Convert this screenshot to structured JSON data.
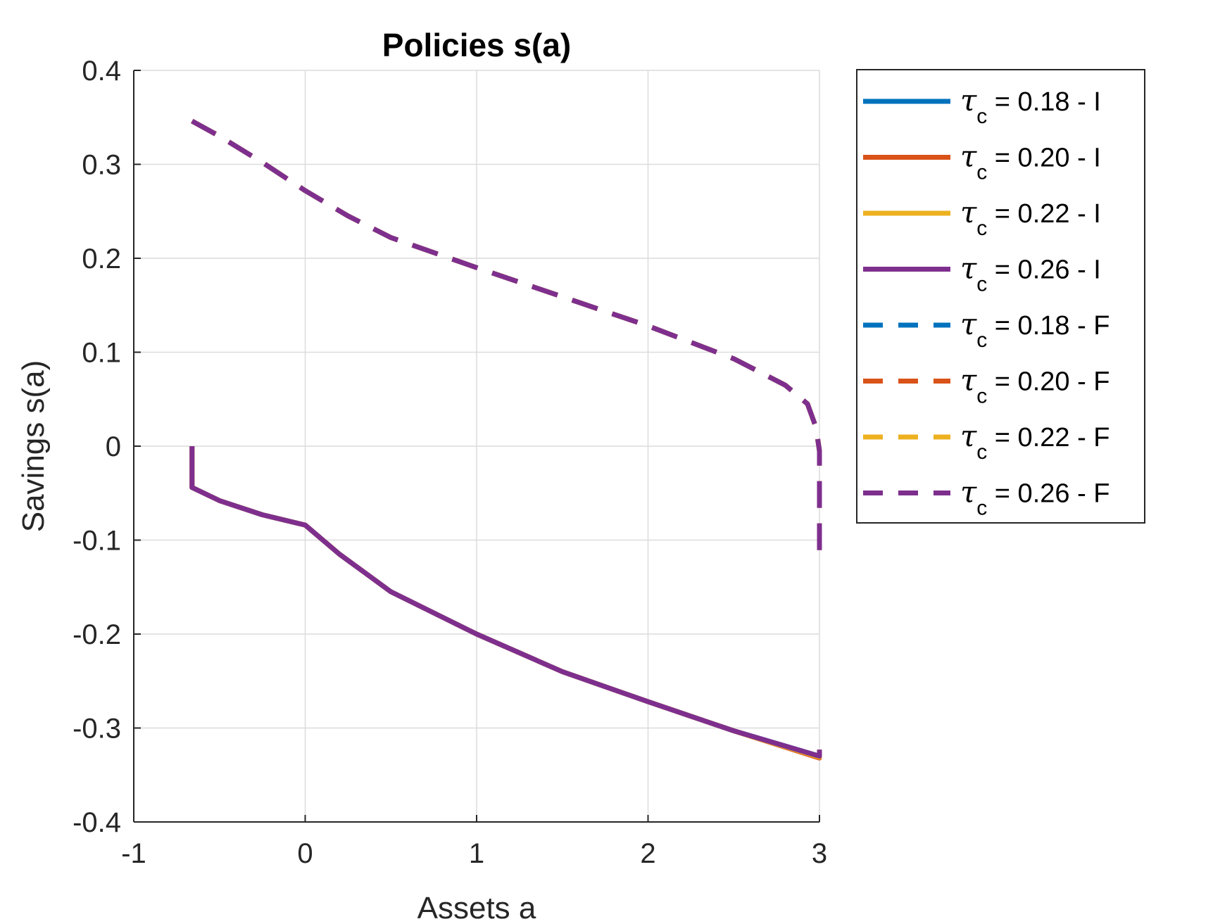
{
  "chart_data": {
    "type": "line",
    "title": "Policies s(a)",
    "xlabel": "Assets a",
    "ylabel": "Savings s(a)",
    "xlim": [
      -1,
      3
    ],
    "ylim": [
      -0.4,
      0.4
    ],
    "xticks": [
      -1,
      0,
      1,
      2,
      3
    ],
    "yticks": [
      -0.4,
      -0.3,
      -0.2,
      -0.1,
      0,
      0.1,
      0.2,
      0.3,
      0.4
    ],
    "xtick_labels": [
      "-1",
      "0",
      "1",
      "2",
      "3"
    ],
    "ytick_labels": [
      "-0.4",
      "-0.3",
      "-0.2",
      "-0.1",
      "0",
      "0.1",
      "0.2",
      "0.3",
      "0.4"
    ],
    "grid": true,
    "legend_position": "outside-top-right",
    "series": [
      {
        "name": "= 0.18 - I",
        "symbol": "τ",
        "subscript": "c",
        "color": "#0072BD",
        "style": "solid",
        "x": [
          -0.66,
          -0.66,
          -0.5,
          -0.25,
          0,
          0.2,
          0.5,
          1,
          1.5,
          2,
          2.5,
          3,
          3
        ],
        "y": [
          0,
          -0.044,
          -0.058,
          -0.073,
          -0.084,
          -0.115,
          -0.155,
          -0.2,
          -0.24,
          -0.272,
          -0.303,
          -0.33,
          -0.323
        ]
      },
      {
        "name": "= 0.20 - I",
        "symbol": "τ",
        "subscript": "c",
        "color": "#D95319",
        "style": "solid",
        "x": [
          -0.66,
          -0.66,
          -0.5,
          -0.25,
          0,
          0.2,
          0.5,
          1,
          1.5,
          2,
          2.5,
          3,
          3
        ],
        "y": [
          0,
          -0.044,
          -0.058,
          -0.073,
          -0.084,
          -0.115,
          -0.155,
          -0.2,
          -0.24,
          -0.272,
          -0.303,
          -0.332,
          -0.324
        ]
      },
      {
        "name": "= 0.22 - I",
        "symbol": "τ",
        "subscript": "c",
        "color": "#EDB120",
        "style": "solid",
        "x": [
          -0.66,
          -0.66,
          -0.5,
          -0.25,
          0,
          0.2,
          0.5,
          1,
          1.5,
          2,
          2.5,
          3,
          3
        ],
        "y": [
          0,
          -0.044,
          -0.058,
          -0.073,
          -0.084,
          -0.115,
          -0.155,
          -0.2,
          -0.24,
          -0.272,
          -0.303,
          -0.331,
          -0.323
        ]
      },
      {
        "name": "= 0.26 - I",
        "symbol": "τ",
        "subscript": "c",
        "color": "#7E2F8E",
        "style": "solid",
        "x": [
          -0.66,
          -0.66,
          -0.5,
          -0.25,
          0,
          0.2,
          0.5,
          1,
          1.5,
          2,
          2.5,
          3,
          3
        ],
        "y": [
          0,
          -0.044,
          -0.058,
          -0.073,
          -0.084,
          -0.115,
          -0.155,
          -0.2,
          -0.24,
          -0.272,
          -0.303,
          -0.33,
          -0.323
        ]
      },
      {
        "name": "= 0.18 - F",
        "symbol": "τ",
        "subscript": "c",
        "color": "#0072BD",
        "style": "dashed",
        "x": [
          -0.66,
          -0.5,
          -0.25,
          0,
          0.25,
          0.5,
          1,
          1.5,
          2,
          2.5,
          2.8,
          2.93,
          2.98,
          3,
          3
        ],
        "y": [
          0.346,
          0.33,
          0.302,
          0.272,
          0.245,
          0.222,
          0.19,
          0.159,
          0.128,
          0.093,
          0.065,
          0.045,
          0.02,
          -0.005,
          -0.12
        ]
      },
      {
        "name": "= 0.20 - F",
        "symbol": "τ",
        "subscript": "c",
        "color": "#D95319",
        "style": "dashed",
        "x": [
          -0.66,
          -0.5,
          -0.25,
          0,
          0.25,
          0.5,
          1,
          1.5,
          2,
          2.5,
          2.8,
          2.93,
          2.98,
          3,
          3
        ],
        "y": [
          0.346,
          0.33,
          0.302,
          0.272,
          0.245,
          0.222,
          0.19,
          0.159,
          0.128,
          0.093,
          0.065,
          0.045,
          0.02,
          -0.005,
          -0.12
        ]
      },
      {
        "name": "= 0.22 - F",
        "symbol": "τ",
        "subscript": "c",
        "color": "#EDB120",
        "style": "dashed",
        "x": [
          -0.66,
          -0.5,
          -0.25,
          0,
          0.25,
          0.5,
          1,
          1.5,
          2,
          2.5,
          2.8,
          2.93,
          2.98,
          3,
          3
        ],
        "y": [
          0.346,
          0.33,
          0.302,
          0.272,
          0.245,
          0.222,
          0.19,
          0.159,
          0.128,
          0.093,
          0.065,
          0.045,
          0.02,
          -0.005,
          -0.12
        ]
      },
      {
        "name": "= 0.26 - F",
        "symbol": "τ",
        "subscript": "c",
        "color": "#7E2F8E",
        "style": "dashed",
        "x": [
          -0.66,
          -0.5,
          -0.25,
          0,
          0.25,
          0.5,
          1,
          1.5,
          2,
          2.5,
          2.8,
          2.93,
          2.98,
          3,
          3
        ],
        "y": [
          0.346,
          0.33,
          0.302,
          0.272,
          0.245,
          0.222,
          0.19,
          0.159,
          0.128,
          0.093,
          0.065,
          0.045,
          0.02,
          -0.005,
          -0.12
        ]
      }
    ]
  }
}
